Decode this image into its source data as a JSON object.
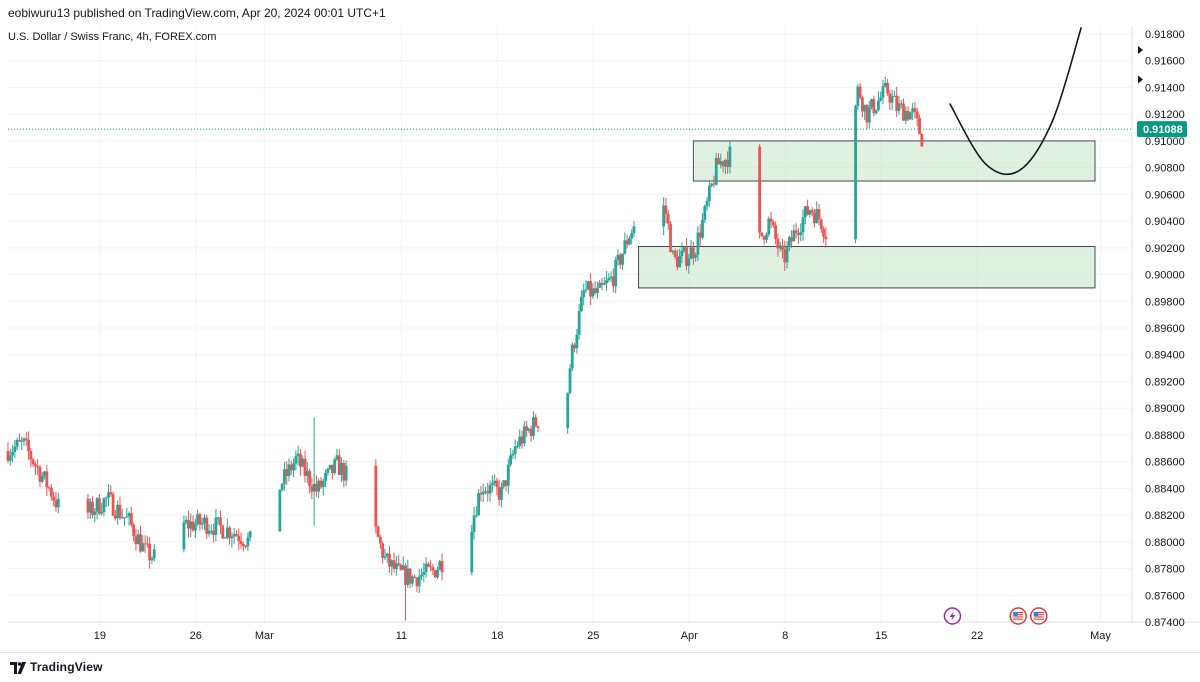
{
  "header": {
    "published_by": "eobiwuru13 published on TradingView.com, Apr 20, 2024 00:01 UTC+1"
  },
  "chart_data": {
    "type": "candlestick",
    "symbol_line": "U.S. Dollar / Swiss Franc, 4h, FOREX.com",
    "current_price": 0.91088,
    "current_price_label": "0.91088",
    "price_levels": [
      0.918,
      0.916,
      0.914,
      0.912,
      0.91,
      0.908,
      0.906,
      0.904,
      0.902,
      0.9,
      0.898,
      0.896,
      0.894,
      0.892,
      0.89,
      0.888,
      0.886,
      0.884,
      0.882,
      0.88,
      0.878,
      0.876,
      0.874
    ],
    "y_tick_labels": [
      "0.91800",
      "0.91600",
      "0.91400",
      "0.91200",
      "0.91000",
      "0.90800",
      "0.90600",
      "0.90400",
      "0.90200",
      "0.90000",
      "0.89800",
      "0.89600",
      "0.89400",
      "0.89200",
      "0.89000",
      "0.88800",
      "0.88600",
      "0.88400",
      "0.88200",
      "0.88000",
      "0.87800",
      "0.87600",
      "0.87400"
    ],
    "ylim": [
      0.874,
      0.9186
    ],
    "x_ticks": [
      {
        "label": "19",
        "day": 19
      },
      {
        "label": "26",
        "day": 26
      },
      {
        "label": "Mar",
        "day": 31
      },
      {
        "label": "11",
        "day": 41
      },
      {
        "label": "18",
        "day": 48
      },
      {
        "label": "25",
        "day": 55
      },
      {
        "label": "Apr",
        "day": 62
      },
      {
        "label": "8",
        "day": 69
      },
      {
        "label": "15",
        "day": 76
      },
      {
        "label": "22",
        "day": 83
      },
      {
        "label": "May",
        "day": 92
      }
    ],
    "xlim_days": [
      12.3,
      94.3
    ],
    "last_candle_day": 81.0,
    "anchors": [
      [
        12.3,
        0.8868
      ],
      [
        13.6,
        0.8873
      ],
      [
        15.6,
        0.8838
      ],
      [
        16.8,
        0.8812
      ],
      [
        17.8,
        0.8818
      ],
      [
        19.7,
        0.8832
      ],
      [
        21.3,
        0.8815
      ],
      [
        22.5,
        0.8792
      ],
      [
        23.5,
        0.8786
      ],
      [
        24.6,
        0.8812
      ],
      [
        26.8,
        0.8814
      ],
      [
        28.8,
        0.8808
      ],
      [
        30.6,
        0.8797
      ],
      [
        31.6,
        0.8786
      ],
      [
        32.3,
        0.8842
      ],
      [
        33.5,
        0.8862
      ],
      [
        35.0,
        0.8838
      ],
      [
        36.5,
        0.8858
      ],
      [
        38.0,
        0.8838
      ],
      [
        39.0,
        0.8816
      ],
      [
        40.0,
        0.8786
      ],
      [
        41.0,
        0.8776
      ],
      [
        42.0,
        0.8773
      ],
      [
        43.5,
        0.8778
      ],
      [
        45.0,
        0.8795
      ],
      [
        46.0,
        0.8803
      ],
      [
        47.0,
        0.8842
      ],
      [
        48.5,
        0.8836
      ],
      [
        49.5,
        0.8872
      ],
      [
        50.6,
        0.8885
      ],
      [
        51.8,
        0.8898
      ],
      [
        52.7,
        0.8848
      ],
      [
        53.5,
        0.8935
      ],
      [
        54.5,
        0.8988
      ],
      [
        55.5,
        0.8985
      ],
      [
        56.6,
        0.8998
      ],
      [
        57.8,
        0.903
      ],
      [
        58.8,
        0.9048
      ],
      [
        59.6,
        0.9066
      ],
      [
        60.5,
        0.9045
      ],
      [
        61.0,
        0.901
      ],
      [
        62.0,
        0.9014
      ],
      [
        62.6,
        0.902
      ],
      [
        63.3,
        0.9045
      ],
      [
        64.2,
        0.9082
      ],
      [
        65.2,
        0.909
      ],
      [
        66.0,
        0.9075
      ],
      [
        67.0,
        0.902
      ],
      [
        68.0,
        0.904
      ],
      [
        69.0,
        0.901
      ],
      [
        70.0,
        0.9035
      ],
      [
        71.0,
        0.905
      ],
      [
        71.8,
        0.904
      ],
      [
        72.5,
        0.9022
      ],
      [
        73.2,
        0.9035
      ],
      [
        73.9,
        0.9095
      ],
      [
        74.5,
        0.914
      ],
      [
        75.1,
        0.912
      ],
      [
        75.8,
        0.9128
      ],
      [
        76.6,
        0.9138
      ],
      [
        77.3,
        0.9125
      ],
      [
        78.5,
        0.912
      ],
      [
        79.3,
        0.9098
      ],
      [
        80.0,
        0.9113
      ],
      [
        80.5,
        0.91
      ],
      [
        81.0,
        0.9109
      ]
    ],
    "zones": [
      {
        "label": "upper-zone",
        "day_from": 62.3,
        "day_to": 91.6,
        "price_from": 0.907,
        "price_to": 0.91,
        "color": "#c8e6c9"
      },
      {
        "label": "lower-zone",
        "day_from": 58.3,
        "day_to": 91.6,
        "price_from": 0.899,
        "price_to": 0.9021,
        "color": "#c8e6c9"
      }
    ],
    "projection": [
      [
        81.0,
        0.9128
      ],
      [
        83.6,
        0.9083
      ],
      [
        86.1,
        0.9078
      ],
      [
        88.5,
        0.9115
      ],
      [
        90.6,
        0.9185
      ]
    ],
    "colors": {
      "up": "#26a69a",
      "down": "#ef5350",
      "price_tag": "#089981",
      "current_line": "#089981",
      "projection": "#131722",
      "zone_border": "#434651",
      "event_icon": "#9c27b0",
      "flag_red": "#e53935",
      "flag_blue": "#1e88e5"
    },
    "events": [
      {
        "icon": "lightning-icon",
        "day": 81.2
      },
      {
        "icon": "us-flag-icon",
        "day": 86.0
      },
      {
        "icon": "us-flag-icon",
        "day": 87.5
      }
    ]
  },
  "footer": {
    "brand": "TradingView"
  }
}
